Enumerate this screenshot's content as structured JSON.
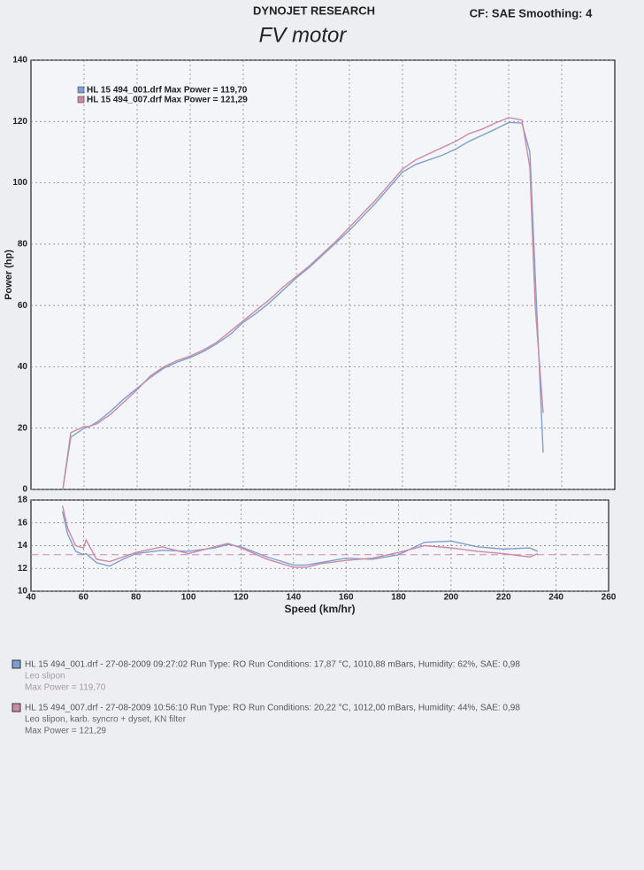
{
  "header": {
    "company": "DYNOJET RESEARCH",
    "settings": "CF: SAE  Smoothing: 4",
    "title": "FV motor"
  },
  "chart_data": [
    {
      "type": "line",
      "ylabel": "Power (hp)",
      "xlim": [
        40,
        260
      ],
      "ylim": [
        0,
        140
      ],
      "yticks": [
        0,
        20,
        40,
        60,
        80,
        100,
        120,
        140
      ],
      "grid": true,
      "legend": "top-left",
      "x": [
        52,
        55,
        60,
        62,
        65,
        70,
        75,
        80,
        85,
        90,
        95,
        100,
        105,
        110,
        115,
        120,
        125,
        130,
        135,
        140,
        145,
        150,
        155,
        160,
        165,
        170,
        175,
        180,
        185,
        190,
        195,
        200,
        205,
        210,
        215,
        220,
        225,
        228,
        230,
        233
      ],
      "series": [
        {
          "name": "HL 15 494_001.drf Max Power = 119,70",
          "color": "#7f9fd2",
          "values": [
            0,
            17,
            20,
            20.5,
            22,
            25.5,
            29.5,
            33,
            36.5,
            39.5,
            41.5,
            43,
            45,
            47.5,
            50.5,
            54.5,
            57.5,
            61,
            65,
            69,
            72.5,
            76.5,
            80.5,
            84.5,
            89,
            93.5,
            98.5,
            103.5,
            106,
            107.5,
            109,
            111,
            113.5,
            115.5,
            117.5,
            119.7,
            119.5,
            110,
            70,
            12
          ]
        },
        {
          "name": "HL 15 494_007.drf Max Power = 121,29",
          "color": "#cc8aa2",
          "values": [
            0,
            18.5,
            20.5,
            20.5,
            21.5,
            24.5,
            28.5,
            32.5,
            37,
            40,
            42,
            43.5,
            45.5,
            48,
            51.5,
            55,
            58.5,
            62,
            66,
            69.5,
            73,
            77,
            81,
            85.5,
            90,
            94.5,
            99.5,
            104.5,
            107.5,
            109.5,
            111.5,
            113.5,
            116,
            117.5,
            119.5,
            121.29,
            120.5,
            105,
            60,
            25
          ]
        }
      ]
    },
    {
      "type": "line",
      "xlabel": "Speed (km/hr)",
      "xlim": [
        40,
        260
      ],
      "xticks": [
        40,
        60,
        80,
        100,
        120,
        140,
        160,
        180,
        200,
        220,
        240,
        260
      ],
      "ylim": [
        10,
        18
      ],
      "yticks": [
        10,
        12,
        14,
        16,
        18
      ],
      "grid": true,
      "reference": 13.2,
      "x": [
        52,
        54,
        57,
        60,
        61,
        65,
        70,
        75,
        80,
        90,
        100,
        110,
        115,
        120,
        130,
        140,
        145,
        150,
        160,
        170,
        180,
        190,
        200,
        210,
        220,
        230,
        233
      ],
      "series": [
        {
          "color": "#7f9fd2",
          "values": [
            17,
            15,
            13.5,
            13.2,
            13.3,
            12.5,
            12.2,
            12.8,
            13.3,
            13.6,
            13.5,
            13.8,
            14.1,
            13.9,
            13,
            12.3,
            12.3,
            12.5,
            12.9,
            12.8,
            13.2,
            14.3,
            14.4,
            13.9,
            13.7,
            13.8,
            13.5
          ]
        },
        {
          "color": "#cc8aa2",
          "values": [
            17.5,
            15.5,
            14,
            13.8,
            14.5,
            12.8,
            12.6,
            13,
            13.4,
            13.9,
            13.3,
            13.9,
            14.2,
            13.8,
            12.8,
            12.1,
            12.1,
            12.4,
            12.7,
            12.9,
            13.4,
            14,
            13.8,
            13.5,
            13.3,
            13,
            13.3
          ]
        }
      ]
    }
  ],
  "runs": [
    {
      "line1": "HL 15 494_001.drf - 27-08-2009 09:27:02  Run Type: RO  Run Conditions: 17,87 °C, 1010,88 mBars,  Humidity: 62%,  SAE: 0,98",
      "line2": "Leo slipon",
      "line3": "Max Power = 119,70"
    },
    {
      "line1": "HL 15 494_007.drf - 27-08-2009 10:56:10  Run Type: RO  Run Conditions: 20,22 °C, 1012,00 mBars,  Humidity: 44%,  SAE: 0,98",
      "line2": "Leo slipon, karb. syncro + dyset, KN filter",
      "line3": "Max Power = 121,29"
    }
  ]
}
